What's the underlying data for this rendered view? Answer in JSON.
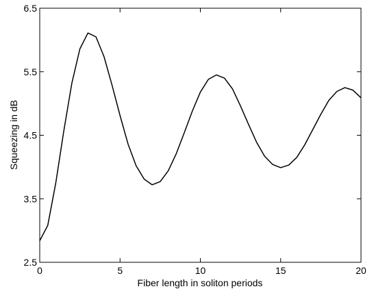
{
  "chart_data": {
    "type": "line",
    "title": "",
    "xlabel": "Fiber length in soliton periods",
    "ylabel": "Squeezing in dB",
    "xlim": [
      0,
      20
    ],
    "ylim": [
      2.5,
      6.5
    ],
    "xticks": [
      0,
      5,
      10,
      15,
      20
    ],
    "yticks": [
      2.5,
      3.5,
      4.5,
      5.5,
      6.5
    ],
    "xtick_labels": [
      "0",
      "5",
      "10",
      "15",
      "20"
    ],
    "ytick_labels": [
      "2.5",
      "3.5",
      "4.5",
      "5.5",
      "6.5"
    ],
    "grid": false,
    "legend": "none",
    "series": [
      {
        "color": "#000000",
        "x": [
          0,
          0.5,
          1,
          1.5,
          2,
          2.5,
          3,
          3.5,
          4,
          4.5,
          5,
          5.5,
          6,
          6.5,
          7,
          7.5,
          8,
          8.5,
          9,
          9.5,
          10,
          10.5,
          11,
          11.5,
          12,
          12.5,
          13,
          13.5,
          14,
          14.5,
          15,
          15.5,
          16,
          16.5,
          17,
          17.5,
          18,
          18.5,
          19,
          19.5,
          20
        ],
        "y": [
          2.84,
          3.08,
          3.75,
          4.57,
          5.32,
          5.86,
          6.11,
          6.05,
          5.74,
          5.29,
          4.81,
          4.36,
          4.02,
          3.81,
          3.72,
          3.77,
          3.94,
          4.21,
          4.54,
          4.88,
          5.18,
          5.38,
          5.45,
          5.4,
          5.23,
          4.96,
          4.67,
          4.39,
          4.17,
          4.04,
          3.99,
          4.03,
          4.15,
          4.35,
          4.59,
          4.83,
          5.05,
          5.19,
          5.25,
          5.21,
          5.09
        ]
      }
    ]
  }
}
